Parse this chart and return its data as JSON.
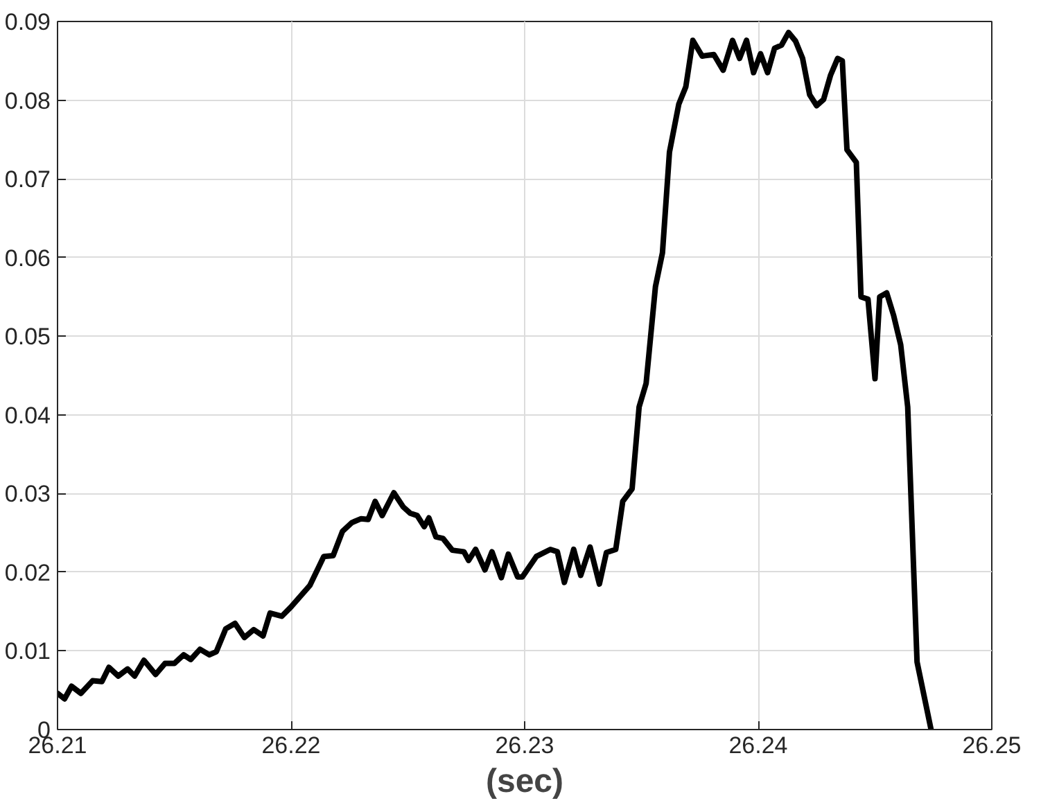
{
  "chart_data": {
    "type": "line",
    "xlabel": "(sec)",
    "xlim": [
      26.21,
      26.25
    ],
    "ylim": [
      0,
      0.09
    ],
    "xticks": [
      26.21,
      26.22,
      26.23,
      26.24,
      26.25
    ],
    "yticks": [
      0,
      0.01,
      0.02,
      0.03,
      0.04,
      0.05,
      0.06,
      0.07,
      0.08,
      0.09
    ],
    "grid": true,
    "line_style": "solid",
    "marker": "none",
    "series": [
      {
        "color": "#000000",
        "x": [
          26.21,
          26.2103,
          26.2106,
          26.211,
          26.2115,
          26.2119,
          26.2122,
          26.2126,
          26.213,
          26.2133,
          26.2137,
          26.2142,
          26.2146,
          26.215,
          26.2154,
          26.2157,
          26.2161,
          26.2165,
          26.2168,
          26.2172,
          26.2176,
          26.218,
          26.2184,
          26.2188,
          26.2191,
          26.2196,
          26.22,
          26.2208,
          26.2214,
          26.2218,
          26.2222,
          26.2226,
          26.223,
          26.2233,
          26.2236,
          26.2239,
          26.2244,
          26.2248,
          26.2251,
          26.2254,
          26.2257,
          26.2259,
          26.2262,
          26.2265,
          26.2269,
          26.2274,
          26.2276,
          26.2279,
          26.2283,
          26.2286,
          26.229,
          26.2293,
          26.2297,
          26.2299,
          26.2305,
          26.2311,
          26.2314,
          26.2317,
          26.2321,
          26.2324,
          26.2328,
          26.2332,
          26.2335,
          26.2339,
          26.2342,
          26.2346,
          26.2349,
          26.2352,
          26.2356,
          26.2359,
          26.2362,
          26.2366,
          26.2369,
          26.2372,
          26.2376,
          26.2381,
          26.2385,
          26.2389,
          26.2392,
          26.2395,
          26.2398,
          26.2401,
          26.2404,
          26.2407,
          26.241,
          26.2413,
          26.2416,
          26.2419,
          26.2422,
          26.2425,
          26.2428,
          26.2431,
          26.2434,
          26.2436,
          26.2438,
          26.2442,
          26.2444,
          26.2447,
          26.245,
          26.2452,
          26.2455,
          26.2458,
          26.2461,
          26.2464,
          26.2468,
          26.2474
        ],
        "values": [
          0.0046,
          0.0039,
          0.0055,
          0.0046,
          0.0062,
          0.0061,
          0.0079,
          0.0068,
          0.0077,
          0.0068,
          0.0088,
          0.007,
          0.0084,
          0.0084,
          0.0095,
          0.0089,
          0.0102,
          0.0095,
          0.0099,
          0.0128,
          0.0135,
          0.0117,
          0.0127,
          0.0119,
          0.0148,
          0.0144,
          0.0156,
          0.0183,
          0.022,
          0.0221,
          0.0252,
          0.0263,
          0.0268,
          0.0267,
          0.029,
          0.0272,
          0.0301,
          0.0283,
          0.0275,
          0.0272,
          0.0258,
          0.0269,
          0.0245,
          0.0243,
          0.0228,
          0.0226,
          0.0215,
          0.0229,
          0.0203,
          0.0226,
          0.0193,
          0.0223,
          0.0194,
          0.0194,
          0.022,
          0.0229,
          0.0226,
          0.0187,
          0.0229,
          0.0196,
          0.0232,
          0.0185,
          0.0225,
          0.0229,
          0.029,
          0.0306,
          0.041,
          0.044,
          0.0563,
          0.0606,
          0.0734,
          0.0795,
          0.0817,
          0.0876,
          0.0856,
          0.0858,
          0.0838,
          0.0876,
          0.0853,
          0.0876,
          0.0835,
          0.0859,
          0.0835,
          0.0866,
          0.087,
          0.0886,
          0.0875,
          0.0853,
          0.0807,
          0.0793,
          0.0801,
          0.0832,
          0.0853,
          0.085,
          0.0737,
          0.0721,
          0.055,
          0.0547,
          0.0446,
          0.055,
          0.0555,
          0.0526,
          0.0489,
          0.041,
          0.0086,
          0.0
        ]
      }
    ]
  }
}
